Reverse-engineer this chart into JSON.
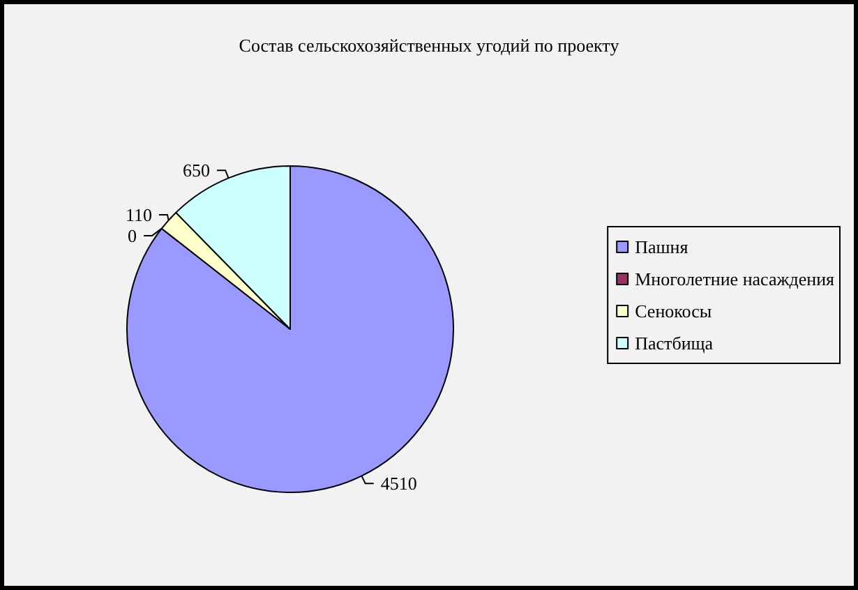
{
  "chart_data": {
    "type": "pie",
    "title": "Состав сельскохозяйственных угодий по проекту",
    "categories": [
      "Пашня",
      "Многолетние насаждения",
      "Сенокосы",
      "Пастбища"
    ],
    "values": [
      4510,
      0,
      110,
      650
    ],
    "colors": [
      "#9999ff",
      "#993366",
      "#ffffcc",
      "#ccffff"
    ],
    "value_labels": [
      "4510",
      "0",
      "110",
      "650"
    ],
    "legend": "right"
  }
}
